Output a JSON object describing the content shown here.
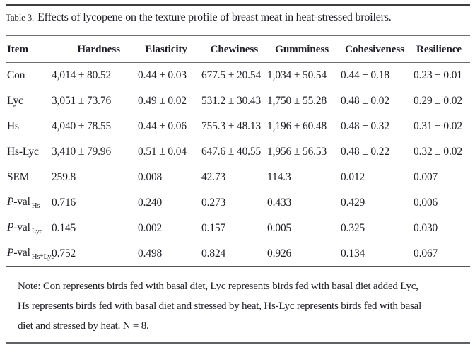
{
  "title": {
    "label": "Table 3.",
    "text": "Effects of lycopene on the texture profile of breast meat in heat-stressed broilers."
  },
  "table": {
    "columns": [
      "Item",
      "Hardness",
      "Elasticity",
      "Chewiness",
      "Gumminess",
      "Cohesiveness",
      "Resilience"
    ],
    "rows": [
      {
        "label": {
          "text": "Con"
        },
        "cells": [
          "4,014 ± 80.52",
          "0.44 ± 0.03",
          "677.5 ± 20.54",
          "1,034 ± 50.54",
          "0.44 ± 0.18",
          "0.23 ± 0.01"
        ]
      },
      {
        "label": {
          "text": "Lyc"
        },
        "cells": [
          "3,051 ± 73.76",
          "0.49 ± 0.02",
          "531.2 ± 30.43",
          "1,750 ± 55.28",
          "0.48 ± 0.02",
          "0.29 ± 0.02"
        ]
      },
      {
        "label": {
          "text": "Hs"
        },
        "cells": [
          "4,040 ± 78.55",
          "0.44 ± 0.06",
          "755.3 ± 48.13",
          "1,196 ± 60.48",
          "0.48 ± 0.32",
          "0.31 ± 0.02"
        ]
      },
      {
        "label": {
          "text": "Hs-Lyc"
        },
        "cells": [
          "3,410 ± 79.96",
          "0.51 ± 0.04",
          "647.6 ± 40.55",
          "1,956 ± 56.53",
          "0.48 ± 0.22",
          "0.32 ± 0.02"
        ]
      },
      {
        "label": {
          "text": "SEM"
        },
        "cells": [
          "259.8",
          "0.008",
          "42.73",
          "114.3",
          "0.012",
          "0.007"
        ]
      },
      {
        "label": {
          "p": "P",
          "rest": "-val",
          "sub": "Hs"
        },
        "cells": [
          "0.716",
          "0.240",
          "0.273",
          "0.433",
          "0.429",
          "0.006"
        ]
      },
      {
        "label": {
          "p": "P",
          "rest": "-val",
          "sub": "Lyc"
        },
        "cells": [
          "0.145",
          "0.002",
          "0.157",
          "0.005",
          "0.325",
          "0.030"
        ]
      },
      {
        "label": {
          "p": "P",
          "rest": "-val",
          "sub": "Hs*Lyc"
        },
        "cells": [
          "0.752",
          "0.498",
          "0.824",
          "0.926",
          "0.134",
          "0.067"
        ]
      }
    ]
  },
  "note": {
    "lines": [
      "Note: Con represents birds fed with basal diet, Lyc represents birds fed with basal diet added Lyc,",
      "Hs represents birds fed with basal diet and stressed by heat, Hs-Lyc represents birds fed with basal",
      "diet and stressed by heat. N = 8."
    ]
  },
  "colors": {
    "text": "#1d1e26",
    "rule_heavy": "#3f3f3f",
    "rule_light": "#6e6e6e"
  }
}
